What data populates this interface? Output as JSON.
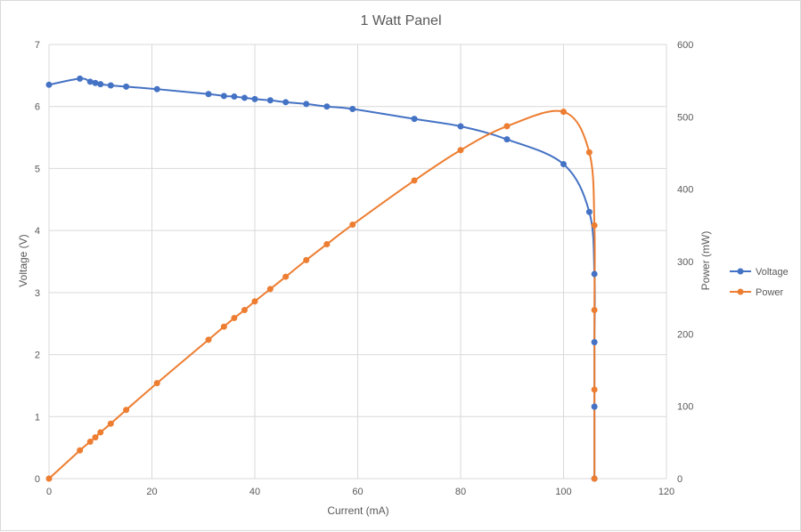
{
  "chart_data": {
    "type": "scatter",
    "title": "1 Watt Panel",
    "xlabel": "Current (mA)",
    "ylabel": "Voltage (V)",
    "y2label": "Power (mW)",
    "xlim": [
      0,
      120
    ],
    "ylim": [
      0,
      7
    ],
    "y2lim": [
      0,
      600
    ],
    "x_ticks": [
      0,
      20,
      40,
      60,
      80,
      100,
      120
    ],
    "y_ticks": [
      0,
      1,
      2,
      3,
      4,
      5,
      6,
      7
    ],
    "y2_ticks": [
      0,
      100,
      200,
      300,
      400,
      500,
      600
    ],
    "grid": true,
    "legend_position": "right",
    "series": [
      {
        "name": "Voltage",
        "axis": "left",
        "color": "#4472C4",
        "points": [
          [
            0,
            6.35
          ],
          [
            6,
            6.45
          ],
          [
            8,
            6.4
          ],
          [
            9,
            6.38
          ],
          [
            10,
            6.36
          ],
          [
            12,
            6.34
          ],
          [
            15,
            6.32
          ],
          [
            21,
            6.28
          ],
          [
            31,
            6.2
          ],
          [
            34,
            6.17
          ],
          [
            36,
            6.16
          ],
          [
            38,
            6.14
          ],
          [
            40,
            6.12
          ],
          [
            43,
            6.1
          ],
          [
            46,
            6.07
          ],
          [
            50,
            6.04
          ],
          [
            54,
            6.0
          ],
          [
            59,
            5.96
          ],
          [
            71,
            5.8
          ],
          [
            80,
            5.68
          ],
          [
            89,
            5.47
          ],
          [
            100,
            5.07
          ],
          [
            105,
            4.3
          ],
          [
            106,
            3.3
          ],
          [
            106,
            2.2
          ],
          [
            106,
            1.16
          ],
          [
            106,
            0
          ]
        ]
      },
      {
        "name": "Power",
        "axis": "right",
        "color": "#ED7D31",
        "points": [
          [
            0,
            0
          ],
          [
            6,
            39
          ],
          [
            8,
            51
          ],
          [
            9,
            57
          ],
          [
            10,
            64
          ],
          [
            12,
            76
          ],
          [
            15,
            95
          ],
          [
            21,
            132
          ],
          [
            31,
            192
          ],
          [
            34,
            210
          ],
          [
            36,
            222
          ],
          [
            38,
            233
          ],
          [
            40,
            245
          ],
          [
            43,
            262
          ],
          [
            46,
            279
          ],
          [
            50,
            302
          ],
          [
            54,
            324
          ],
          [
            59,
            351
          ],
          [
            71,
            412
          ],
          [
            80,
            454
          ],
          [
            89,
            487
          ],
          [
            100,
            507
          ],
          [
            105,
            451
          ],
          [
            106,
            350
          ],
          [
            106,
            233
          ],
          [
            106,
            123
          ],
          [
            106,
            0
          ]
        ]
      }
    ]
  }
}
